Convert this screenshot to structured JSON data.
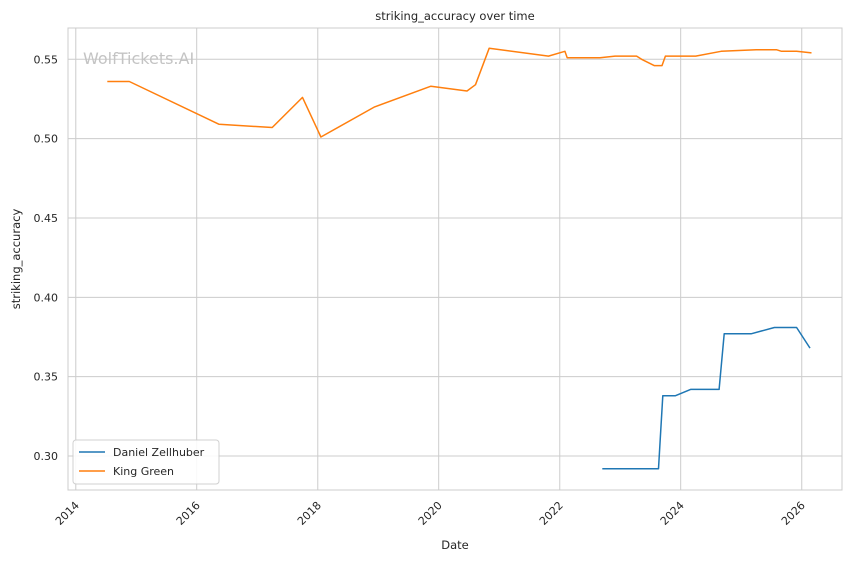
{
  "chart_data": {
    "type": "line",
    "title": "striking_accuracy over time",
    "xlabel": "Date",
    "ylabel": "striking_accuracy",
    "watermark": "WolfTickets.AI",
    "xlim": [
      "2013-11-15",
      "2026-09-01"
    ],
    "ylim": [
      0.2786,
      0.5697
    ],
    "x_ticks": [
      "2014",
      "2016",
      "2018",
      "2020",
      "2022",
      "2024",
      "2026"
    ],
    "y_ticks": [
      "0.30",
      "0.35",
      "0.40",
      "0.45",
      "0.50",
      "0.55"
    ],
    "grid": true,
    "legend_position": "lower-left",
    "series": [
      {
        "name": "Daniel Zellhuber",
        "color": "#1f77b4",
        "points": [
          [
            "2022-09-15",
            0.292
          ],
          [
            "2023-08-20",
            0.292
          ],
          [
            "2023-09-15",
            0.338
          ],
          [
            "2023-12-01",
            0.338
          ],
          [
            "2024-03-01",
            0.342
          ],
          [
            "2024-08-20",
            0.342
          ],
          [
            "2024-09-20",
            0.377
          ],
          [
            "2025-03-01",
            0.377
          ],
          [
            "2025-07-20",
            0.381
          ],
          [
            "2025-12-01",
            0.381
          ],
          [
            "2026-02-20",
            0.368
          ]
        ]
      },
      {
        "name": "King Green",
        "color": "#ff7f0e",
        "points": [
          [
            "2014-07-10",
            0.536
          ],
          [
            "2014-11-20",
            0.536
          ],
          [
            "2016-05-15",
            0.509
          ],
          [
            "2017-04-01",
            0.507
          ],
          [
            "2017-10-01",
            0.526
          ],
          [
            "2018-01-20",
            0.501
          ],
          [
            "2018-12-10",
            0.52
          ],
          [
            "2019-11-15",
            0.533
          ],
          [
            "2020-06-20",
            0.53
          ],
          [
            "2020-08-10",
            0.534
          ],
          [
            "2020-11-01",
            0.557
          ],
          [
            "2021-10-25",
            0.552
          ],
          [
            "2022-02-01",
            0.555
          ],
          [
            "2022-02-15",
            0.551
          ],
          [
            "2022-09-01",
            0.551
          ],
          [
            "2022-12-01",
            0.552
          ],
          [
            "2023-04-10",
            0.552
          ],
          [
            "2023-05-10",
            0.55
          ],
          [
            "2023-07-25",
            0.546
          ],
          [
            "2023-09-10",
            0.546
          ],
          [
            "2023-10-01",
            0.552
          ],
          [
            "2024-04-01",
            0.552
          ],
          [
            "2024-09-01",
            0.555
          ],
          [
            "2025-04-01",
            0.556
          ],
          [
            "2025-08-01",
            0.556
          ],
          [
            "2025-09-01",
            0.555
          ],
          [
            "2025-12-01",
            0.555
          ],
          [
            "2026-03-01",
            0.554
          ]
        ]
      }
    ]
  }
}
